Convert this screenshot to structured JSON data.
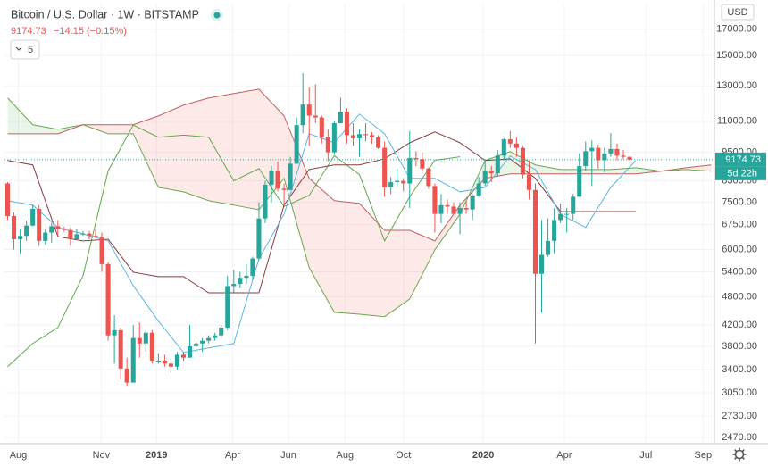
{
  "header": {
    "title": "Bitcoin / U.S. Dollar · 1W · BITSTAMP",
    "change": "−14.15 (−0.15%)",
    "interval_box": "5",
    "currency": "USD",
    "countdown": "5d 22h"
  },
  "chart_data": {
    "type": "candlestick",
    "log_scale": true,
    "grid": true,
    "up_color": "#26a69a",
    "down_color": "#ef5350",
    "last_price": 9174.73,
    "last_price_color": "#26a69a",
    "xlim": [
      -0.5,
      112.5
    ],
    "xticks": [
      {
        "value": 1.7,
        "label": "Aug"
      },
      {
        "value": 14.9,
        "label": "Nov"
      },
      {
        "value": 23.7,
        "label": "2019"
      },
      {
        "value": 35.8,
        "label": "Apr"
      },
      {
        "value": 44.7,
        "label": "Jun"
      },
      {
        "value": 53.7,
        "label": "Aug"
      },
      {
        "value": 63,
        "label": "Oct"
      },
      {
        "value": 75.7,
        "label": "2020"
      },
      {
        "value": 88.6,
        "label": "Apr"
      },
      {
        "value": 101.6,
        "label": "Jul"
      },
      {
        "value": 110.7,
        "label": "Sep"
      }
    ],
    "ylim": [
      2398,
      19100
    ],
    "yticks": [
      {
        "value": 17000,
        "label": "17000.00"
      },
      {
        "value": 15000,
        "label": "15000.00"
      },
      {
        "value": 13000,
        "label": "13000.00"
      },
      {
        "value": 11000,
        "label": "11000.00"
      },
      {
        "value": 9500,
        "label": "9500.00"
      },
      {
        "value": 8300,
        "label": "8300.00"
      },
      {
        "value": 7500,
        "label": "7500.00"
      },
      {
        "value": 6750,
        "label": "6750.00"
      },
      {
        "value": 6000,
        "label": "6000.00"
      },
      {
        "value": 5400,
        "label": "5400.00"
      },
      {
        "value": 4800,
        "label": "4800.00"
      },
      {
        "value": 4200,
        "label": "4200.00"
      },
      {
        "value": 3800,
        "label": "3800.00"
      },
      {
        "value": 3400,
        "label": "3400.00"
      },
      {
        "value": 3050,
        "label": "3050.00"
      },
      {
        "value": 2730,
        "label": "2730.00"
      },
      {
        "value": 2470,
        "label": "2470.00"
      }
    ],
    "open": [
      8200,
      7030,
      6300,
      6400,
      6720,
      7270,
      6250,
      6500,
      6700,
      6620,
      6580,
      6300,
      6450,
      6470,
      6400,
      6350,
      5600,
      4000,
      4100,
      3420,
      3200,
      3950,
      3850,
      4050,
      3550,
      3550,
      3500,
      3450,
      3650,
      3600,
      3800,
      3850,
      3900,
      3950,
      4000,
      4150,
      5050,
      5100,
      5250,
      5300,
      5750,
      6950,
      8150,
      8700,
      8000,
      7950,
      9000,
      10800,
      11900,
      11300,
      11200,
      10200,
      9500,
      10900,
      11500,
      10300,
      10150,
      10350,
      10300,
      10200,
      9700,
      8050,
      8250,
      8300,
      8200,
      9250,
      9200,
      8800,
      8100,
      7100,
      7400,
      7350,
      7100,
      7300,
      7250,
      7750,
      8200,
      8700,
      8600,
      9350,
      10100,
      9900,
      9700,
      8550,
      7950,
      5350,
      5850,
      6250,
      6900,
      7100,
      7100,
      7700,
      8900,
      9550,
      9700,
      9150,
      9450,
      9650,
      9350,
      9300
    ],
    "high": [
      8250,
      7150,
      6620,
      6880,
      7420,
      7400,
      6600,
      6800,
      6900,
      6680,
      6650,
      6600,
      6550,
      6550,
      6600,
      6500,
      5650,
      4400,
      4150,
      3600,
      4200,
      4250,
      4100,
      4100,
      3680,
      3650,
      3580,
      3700,
      3700,
      4200,
      3900,
      3950,
      4000,
      4050,
      4200,
      5300,
      5450,
      5400,
      5600,
      5800,
      7500,
      8300,
      8900,
      9100,
      8200,
      9300,
      11200,
      13800,
      12900,
      13100,
      11300,
      10600,
      11000,
      12300,
      11700,
      10900,
      10600,
      10900,
      10450,
      10300,
      10000,
      8450,
      8800,
      8400,
      10500,
      9550,
      9500,
      8850,
      8200,
      7800,
      7600,
      7500,
      7500,
      7550,
      7800,
      8450,
      9200,
      8900,
      9600,
      10150,
      10500,
      10200,
      9800,
      9150,
      8200,
      6900,
      6950,
      7300,
      7450,
      7300,
      7800,
      9450,
      10000,
      10050,
      9850,
      9700,
      10400,
      9900,
      9600,
      9300
    ],
    "low": [
      6900,
      6000,
      5880,
      6250,
      6700,
      6100,
      6150,
      6200,
      6400,
      6520,
      6120,
      6300,
      6400,
      6300,
      6350,
      5400,
      3900,
      3500,
      3250,
      3150,
      3200,
      3600,
      3700,
      3500,
      3500,
      3450,
      3350,
      3400,
      3550,
      3600,
      3700,
      3700,
      3850,
      3900,
      3950,
      4100,
      4900,
      5000,
      5100,
      5200,
      5700,
      6800,
      7500,
      7900,
      7400,
      7950,
      9000,
      10400,
      9800,
      10900,
      9900,
      9100,
      9400,
      10900,
      9900,
      9800,
      9300,
      10000,
      9900,
      9650,
      7700,
      7800,
      8100,
      7900,
      7300,
      8900,
      8700,
      8000,
      6500,
      6800,
      7100,
      7100,
      6450,
      7100,
      6900,
      7700,
      8100,
      8250,
      8500,
      9150,
      9700,
      9300,
      8400,
      7600,
      3850,
      4450,
      5800,
      5900,
      6800,
      6500,
      6900,
      7700,
      8700,
      8100,
      8800,
      8650,
      9300,
      9150,
      9200,
      9150
    ],
    "close": [
      7030,
      6300,
      6400,
      6720,
      7270,
      6250,
      6500,
      6700,
      6620,
      6580,
      6300,
      6450,
      6470,
      6400,
      6350,
      5600,
      4000,
      4100,
      3420,
      3200,
      3950,
      3850,
      4050,
      3550,
      3550,
      3500,
      3450,
      3650,
      3600,
      3800,
      3850,
      3900,
      3950,
      4000,
      4150,
      5050,
      5100,
      5250,
      5300,
      5750,
      6950,
      8150,
      8700,
      8000,
      7950,
      9000,
      10800,
      11900,
      11300,
      11200,
      10200,
      9500,
      10900,
      11500,
      10300,
      10150,
      10350,
      10300,
      10200,
      9700,
      8050,
      8250,
      8300,
      8200,
      9250,
      9200,
      8800,
      8100,
      7100,
      7400,
      7350,
      7100,
      7300,
      7250,
      7750,
      8200,
      8700,
      8600,
      9350,
      10100,
      9900,
      9700,
      8550,
      7950,
      5350,
      5850,
      6250,
      6900,
      7100,
      7100,
      7700,
      8900,
      9550,
      9700,
      9150,
      9450,
      9650,
      9350,
      9300,
      9174.73
    ],
    "ichimoku": {
      "cloud_up_color": "rgba(76,175,80,0.13)",
      "cloud_down_color": "rgba(239,83,80,0.13)",
      "span_a": {
        "color": "#6aa84f",
        "x": [
          0,
          4,
          8,
          12,
          16,
          20,
          24,
          28,
          32,
          36,
          40,
          44,
          48,
          52,
          56,
          60,
          64,
          68,
          72,
          76,
          80,
          84,
          88,
          92,
          96,
          100,
          104,
          108,
          112
        ],
        "values": [
          12280,
          10820,
          10590,
          10820,
          10370,
          10370,
          8050,
          7880,
          7560,
          7400,
          7240,
          8400,
          5510,
          4460,
          4420,
          4370,
          4750,
          5990,
          7090,
          9140,
          9530,
          8950,
          8760,
          8760,
          8760,
          8830,
          8690,
          8760,
          8690
        ]
      },
      "span_b": {
        "color": "#c0605c",
        "x": [
          0,
          4,
          8,
          12,
          16,
          20,
          24,
          28,
          32,
          36,
          40,
          44,
          48,
          52,
          56,
          60,
          64,
          68,
          72,
          76,
          80,
          84,
          88,
          92,
          96,
          100,
          104,
          108,
          112
        ],
        "values": [
          10370,
          10370,
          10370,
          10820,
          10820,
          10820,
          11280,
          11870,
          12280,
          12540,
          12800,
          11280,
          8400,
          7560,
          7460,
          6570,
          6570,
          6250,
          7400,
          8400,
          8580,
          8580,
          8580,
          8580,
          8580,
          8580,
          8690,
          8830,
          8950
        ]
      },
      "kijun": {
        "color": "#8b3a3a",
        "x": [
          0,
          4,
          8,
          12,
          16,
          20,
          24,
          28,
          32,
          36,
          40,
          44,
          48,
          52,
          56,
          60,
          64,
          68,
          72,
          76,
          80,
          84,
          88,
          92,
          96,
          100
        ],
        "values": [
          9140,
          8950,
          6380,
          6250,
          6300,
          5390,
          5280,
          5280,
          4890,
          4890,
          4890,
          7400,
          8760,
          8950,
          8950,
          9210,
          9940,
          10460,
          9940,
          9140,
          9210,
          8400,
          7180,
          7180,
          7180,
          7180
        ]
      },
      "tenkan": {
        "color": "#5db3e6",
        "x": [
          0,
          4,
          8,
          12,
          16,
          20,
          24,
          28,
          32,
          36,
          40,
          44,
          48,
          52,
          56,
          60,
          64,
          68,
          72,
          76,
          80,
          84,
          88,
          92,
          96,
          100
        ],
        "values": [
          7560,
          7400,
          6660,
          6460,
          6250,
          5060,
          4280,
          3690,
          3770,
          3850,
          5740,
          7090,
          10370,
          9940,
          11380,
          10370,
          8400,
          8400,
          7880,
          8050,
          9330,
          8760,
          7090,
          6660,
          8050,
          9140
        ]
      },
      "chikou": {
        "color": "#5ea84a",
        "x": [
          0,
          4,
          8,
          12,
          16,
          20,
          24,
          28,
          32,
          36,
          40,
          44,
          48,
          52,
          56,
          60,
          64,
          68,
          72
        ],
        "values": [
          3450,
          3850,
          4150,
          5300,
          8700,
          10800,
          10200,
          10300,
          10200,
          8300,
          8800,
          7350,
          7750,
          9350,
          8550,
          6250,
          7700,
          9150,
          9300
        ]
      }
    }
  }
}
